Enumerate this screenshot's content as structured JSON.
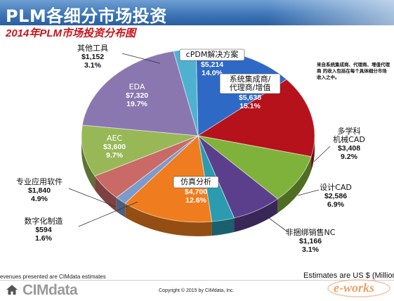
{
  "header": {
    "title": "PLM各细分市场投资",
    "subtitle": "2014年PLM市场投资分布图"
  },
  "note": "来自系统集成商、代理商、增值代理商 的收入包括在每个具体细分市场收入之中。",
  "footer": {
    "source_note": "evenues presented are CIMdata estimates",
    "estimates_note": "Estimates are US $ (Million",
    "logo": "CIMdata",
    "copyright": "Copyright © 2015 by CIMdata, Inc."
  },
  "icons": [
    "home-icon",
    "e-works-watermark-logo"
  ],
  "chart_data": {
    "type": "pie",
    "title": "",
    "unit": "US $ (Million)",
    "slices": [
      {
        "name": "cPDM解决方案",
        "label": "$5,214",
        "value": 5214,
        "percent": "14.0%",
        "color": "#2f69c6"
      },
      {
        "name": "系统集成商/代理商/增值",
        "label": "$5,638",
        "value": 5638,
        "percent": "15.1%",
        "color": "#b5121b"
      },
      {
        "name": "多学科机械CAD",
        "label": "$3,408",
        "value": 3408,
        "percent": "9.2%",
        "color": "#7fb23a"
      },
      {
        "name": "设计CAD",
        "label": "$2,586",
        "value": 2586,
        "percent": "6.9%",
        "color": "#5b3f8c"
      },
      {
        "name": "非捆绑销售NC",
        "label": "$1,166",
        "value": 1166,
        "percent": "3.1%",
        "color": "#2b9bb0"
      },
      {
        "name": "仿真分析",
        "label": "$4,700",
        "value": 4700,
        "percent": "12.6%",
        "color": "#ef7d1f"
      },
      {
        "name": "数字化制造",
        "label": "$594",
        "value": 594,
        "percent": "1.6%",
        "color": "#7c9acb"
      },
      {
        "name": "专业应用软件",
        "label": "$1,840",
        "value": 1840,
        "percent": "4.9%",
        "color": "#c96a67"
      },
      {
        "name": "AEC",
        "label": "$3,600",
        "value": 3600,
        "percent": "9.7%",
        "color": "#98b857"
      },
      {
        "name": "EDA",
        "label": "$7,320",
        "value": 7320,
        "percent": "19.7%",
        "color": "#8a77b0"
      },
      {
        "name": "其他工具",
        "label": "$1,152",
        "value": 1152,
        "percent": "3.1%",
        "color": "#4fb1d0"
      }
    ]
  }
}
